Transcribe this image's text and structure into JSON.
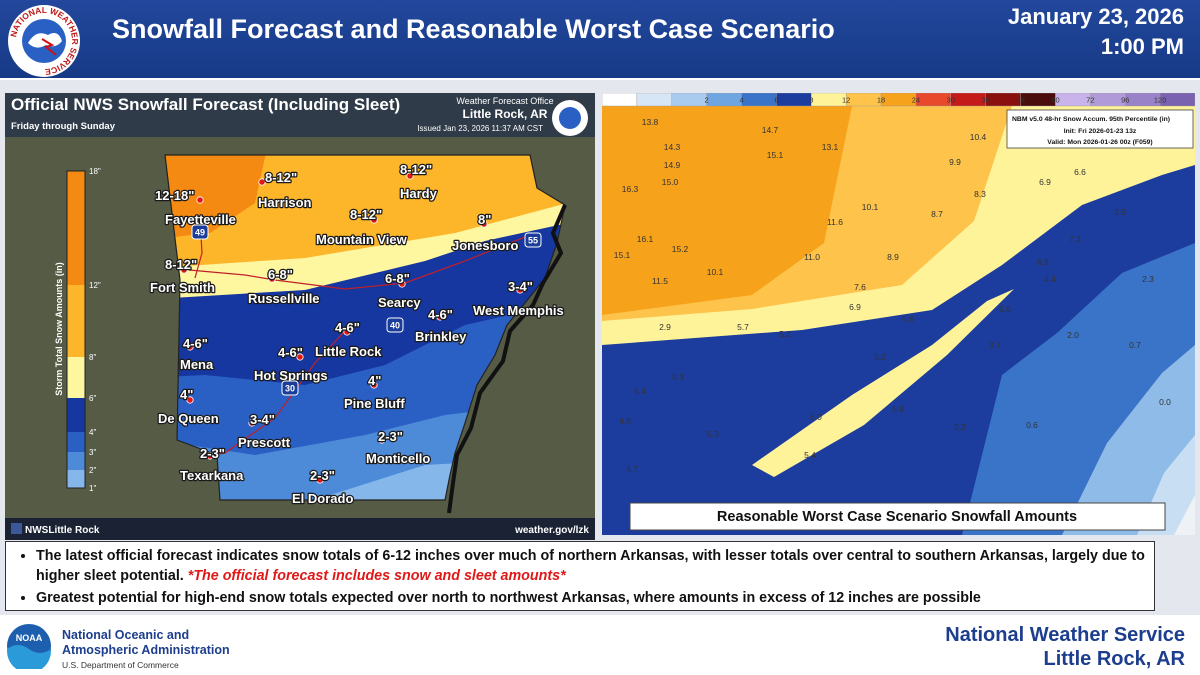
{
  "header": {
    "logo_text": "NATIONAL WEATHER SERVICE",
    "title": "Snowfall Forecast and Reasonable Worst Case Scenario",
    "date": "January 23, 2026",
    "time": "1:00 PM"
  },
  "left_map": {
    "title": "Official NWS Snowfall Forecast (Including Sleet)",
    "subtitle": "Friday through Sunday",
    "office": "Weather Forecast Office",
    "office_location": "Little Rock, AR",
    "issued": "Issued Jan 23, 2026 11:37 AM CST",
    "legend_title": "Storm Total Snow Amounts (in)",
    "legend_ticks": [
      "18\"",
      "12\"",
      "8\"",
      "6\"",
      "4\"",
      "3\"",
      "2\"",
      "1\""
    ],
    "legend_colors": [
      "#f48a12",
      "#fdb52a",
      "#fff6a0",
      "#1636a0",
      "#2a5fc4",
      "#4d8ad8",
      "#86b7ea"
    ],
    "cities": [
      {
        "amount": "12-18\"",
        "name": "Fayetteville"
      },
      {
        "amount": "8-12\"",
        "name": "Harrison"
      },
      {
        "amount": "8-12\"",
        "name": "Hardy"
      },
      {
        "amount": "8-12\"",
        "name": "Mountain View"
      },
      {
        "amount": "8\"",
        "name": "Jonesboro"
      },
      {
        "amount": "8-12\"",
        "name": "Fort Smith"
      },
      {
        "amount": "6-8\"",
        "name": "Russellville"
      },
      {
        "amount": "6-8\"",
        "name": "Searcy"
      },
      {
        "amount": "3-4\"",
        "name": "West Memphis"
      },
      {
        "amount": "4-6\"",
        "name": "Brinkley"
      },
      {
        "amount": "4-6\"",
        "name": "Little Rock"
      },
      {
        "amount": "4-6\"",
        "name": "Mena"
      },
      {
        "amount": "4-6\"",
        "name": "Hot Springs"
      },
      {
        "amount": "4\"",
        "name": "Pine Bluff"
      },
      {
        "amount": "4\"",
        "name": "De Queen"
      },
      {
        "amount": "3-4\"",
        "name": "Prescott"
      },
      {
        "amount": "2-3\"",
        "name": "Monticello"
      },
      {
        "amount": "2-3\"",
        "name": "Texarkana"
      },
      {
        "amount": "2-3\"",
        "name": "El Dorado"
      }
    ],
    "shields": [
      "49",
      "40",
      "30",
      "55"
    ],
    "social": "NWSLittle Rock",
    "website": "weather.gov/lzk"
  },
  "right_map": {
    "colorbar_colors": [
      "#ffffff",
      "#d6e6f6",
      "#a8cbee",
      "#6fa5e0",
      "#3a74c8",
      "#1c3d9e",
      "#fff39a",
      "#fdc34a",
      "#f7a21b",
      "#e8482c",
      "#c41a1a",
      "#8a1010",
      "#4a0c0c",
      "#c8b4ea",
      "#b09ad8",
      "#9a82c8",
      "#7a62b0"
    ],
    "colorbar_labels": [
      "2",
      "4",
      "6",
      "8",
      "12",
      "18",
      "24",
      "30",
      "36",
      "48",
      "60",
      "72",
      "96",
      "120"
    ],
    "legend_title": "NBM v5.0 48-hr Snow Accum. 95th Percentile (in)",
    "init": "Init: Fri 2026-01-23 13z",
    "valid": "Valid: Mon 2026-01-26 00z (F059)",
    "point_values": [
      "13.8",
      "14.7",
      "13.1",
      "14.3",
      "15.1",
      "14.9",
      "15.0",
      "16.3",
      "10.4",
      "9.9",
      "6.9",
      "6.6",
      "10.1",
      "8.7",
      "8.3",
      "11.6",
      "3.5",
      "16.1",
      "15.2",
      "11.0",
      "8.9",
      "7.3",
      "15.1",
      "6.8",
      "10.1",
      "11.5",
      "4.4",
      "2.3",
      "7.6",
      "6.9",
      "5.6",
      "5.0",
      "2.9",
      "5.7",
      "5.2",
      "3.7",
      "2.0",
      "0.7",
      "5.2",
      "5.3",
      "5.4",
      "6.0",
      "5.9",
      "4.8",
      "5.3",
      "2.2",
      "0.6",
      "0.0",
      "5.4",
      "4.7"
    ],
    "caption": "Reasonable Worst Case Scenario Snowfall Amounts"
  },
  "bullets": [
    {
      "text": "The latest official forecast indicates snow totals of 6-12 inches over much of northern Arkansas, with lesser totals over central to southern Arkansas, largely due to higher sleet potential.",
      "emphasis": "*The official forecast includes snow and sleet amounts*"
    },
    {
      "text": "Greatest potential for high-end snow totals expected over north to northwest Arkansas, where amounts in excess of 12 inches are possible"
    }
  ],
  "footer": {
    "noaa_logo": "NOAA",
    "agency_line1": "National Oceanic and",
    "agency_line2": "Atmospheric Administration",
    "department": "U.S. Department of Commerce",
    "office": "National Weather Service",
    "location": "Little Rock, AR"
  }
}
